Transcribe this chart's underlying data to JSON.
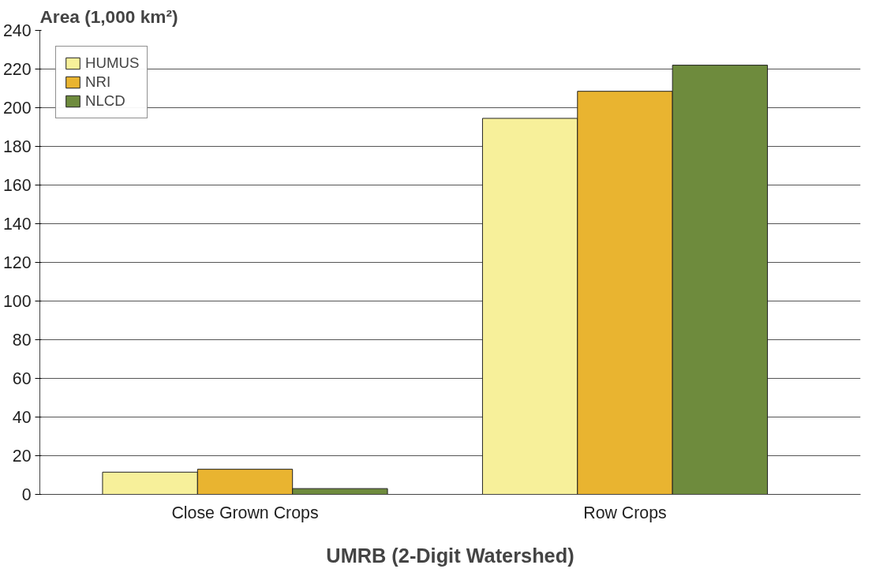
{
  "chart_data": {
    "type": "bar",
    "ylabel": "Area (1,000 km²)",
    "xlabel": "UMRB (2-Digit Watershed)",
    "categories": [
      "Close Grown Crops",
      "Row Crops"
    ],
    "series": [
      {
        "name": "HUMUS",
        "color": "#f7f09a",
        "values": [
          11.5,
          194.5
        ]
      },
      {
        "name": "NRI",
        "color": "#e9b430",
        "values": [
          13,
          208.5
        ]
      },
      {
        "name": "NLCD",
        "color": "#6e8b3d",
        "values": [
          3,
          222
        ]
      }
    ],
    "ylim": [
      0,
      240
    ],
    "yticks": [
      0,
      20,
      40,
      60,
      80,
      100,
      120,
      140,
      160,
      180,
      200,
      220,
      240
    ],
    "grid": "y",
    "legend": "top left"
  }
}
